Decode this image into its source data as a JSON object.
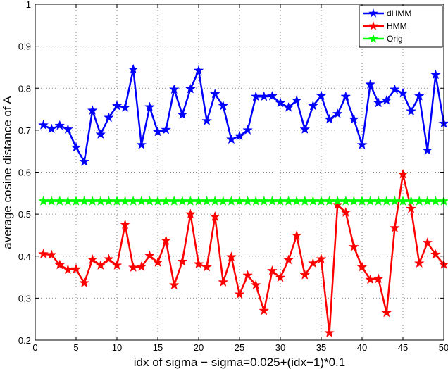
{
  "chart_data": {
    "type": "line",
    "title": "",
    "xlabel": "idx of sigma − sigma=0.025+(idx−1)*0.1",
    "ylabel": "average cosine distance of A",
    "xlim": [
      0,
      50
    ],
    "ylim": [
      0.2,
      1
    ],
    "xticks": [
      "0",
      "5",
      "10",
      "15",
      "20",
      "25",
      "30",
      "35",
      "40",
      "45",
      "50"
    ],
    "yticks": [
      "0.2",
      "0.3",
      "0.4",
      "0.5",
      "0.6",
      "0.7",
      "0.8",
      "0.9",
      "1"
    ],
    "grid": true,
    "legend_position": "top-right",
    "x": [
      1,
      2,
      3,
      4,
      5,
      6,
      7,
      8,
      9,
      10,
      11,
      12,
      13,
      14,
      15,
      16,
      17,
      18,
      19,
      20,
      21,
      22,
      23,
      24,
      25,
      26,
      27,
      28,
      29,
      30,
      31,
      32,
      33,
      34,
      35,
      36,
      37,
      38,
      39,
      40,
      41,
      42,
      43,
      44,
      45,
      46,
      47,
      48,
      49,
      50
    ],
    "series": [
      {
        "name": "dHMM",
        "color": "#0000ff",
        "marker": "star",
        "values": [
          0.712,
          0.703,
          0.711,
          0.702,
          0.659,
          0.625,
          0.747,
          0.69,
          0.73,
          0.758,
          0.754,
          0.845,
          0.665,
          0.755,
          0.696,
          0.701,
          0.797,
          0.737,
          0.798,
          0.842,
          0.722,
          0.786,
          0.758,
          0.678,
          0.686,
          0.7,
          0.78,
          0.78,
          0.781,
          0.765,
          0.754,
          0.771,
          0.702,
          0.758,
          0.782,
          0.726,
          0.739,
          0.78,
          0.726,
          0.665,
          0.809,
          0.765,
          0.771,
          0.797,
          0.788,
          0.745,
          0.781,
          0.652,
          0.832,
          0.716
        ]
      },
      {
        "name": "HMM",
        "color": "#ff0000",
        "marker": "star",
        "values": [
          0.405,
          0.403,
          0.379,
          0.368,
          0.369,
          0.336,
          0.392,
          0.378,
          0.393,
          0.378,
          0.475,
          0.373,
          0.375,
          0.401,
          0.385,
          0.437,
          0.331,
          0.387,
          0.5,
          0.381,
          0.374,
          0.494,
          0.338,
          0.398,
          0.309,
          0.354,
          0.331,
          0.27,
          0.365,
          0.349,
          0.391,
          0.449,
          0.355,
          0.383,
          0.393,
          0.217,
          0.522,
          0.504,
          0.422,
          0.374,
          0.344,
          0.346,
          0.265,
          0.467,
          0.595,
          0.513,
          0.383,
          0.432,
          0.404,
          0.38
        ]
      },
      {
        "name": "Orig",
        "color": "#00ff00",
        "marker": "star",
        "values": [
          0.531,
          0.531,
          0.531,
          0.531,
          0.531,
          0.531,
          0.531,
          0.531,
          0.531,
          0.531,
          0.531,
          0.531,
          0.531,
          0.531,
          0.531,
          0.531,
          0.531,
          0.531,
          0.531,
          0.531,
          0.531,
          0.531,
          0.531,
          0.531,
          0.531,
          0.531,
          0.531,
          0.531,
          0.531,
          0.531,
          0.531,
          0.531,
          0.531,
          0.531,
          0.531,
          0.531,
          0.531,
          0.531,
          0.531,
          0.531,
          0.531,
          0.531,
          0.531,
          0.531,
          0.531,
          0.531,
          0.531,
          0.531,
          0.531,
          0.531
        ]
      }
    ]
  }
}
